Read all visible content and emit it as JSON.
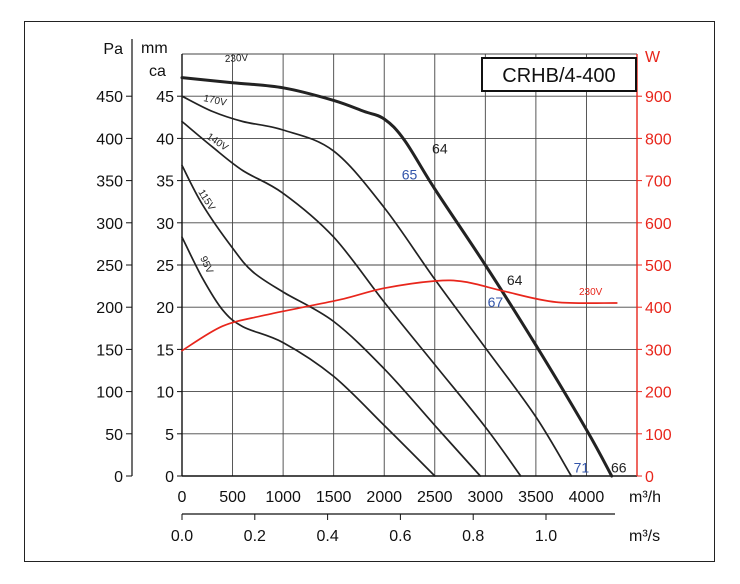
{
  "chart_data": {
    "type": "line",
    "title": "CRHB/4-400",
    "axes": {
      "x": {
        "unit": "m³/h",
        "min": 0,
        "max": 4500,
        "ticks": [
          0,
          500,
          1000,
          1500,
          2000,
          2500,
          3000,
          3500,
          4000
        ]
      },
      "x2": {
        "unit": "m³/s",
        "tick_labels": [
          "0.0",
          "0.2",
          "0.4",
          "0.6",
          "0.8",
          "1.0"
        ],
        "tick_values": [
          0.0,
          0.2,
          0.4,
          0.6,
          0.8,
          1.0
        ]
      },
      "y_pa": {
        "unit": "Pa",
        "min": 0,
        "max": 500,
        "ticks": [
          0,
          50,
          100,
          150,
          200,
          250,
          300,
          350,
          400,
          450
        ]
      },
      "y_mmca": {
        "unit_line1": "mm",
        "unit_line2": "ca",
        "ticks": [
          0,
          5,
          10,
          15,
          20,
          25,
          30,
          35,
          40,
          45
        ]
      },
      "y_w": {
        "unit": "W",
        "min": 0,
        "max": 1000,
        "ticks": [
          0,
          100,
          200,
          300,
          400,
          500,
          600,
          700,
          800,
          900
        ]
      }
    },
    "grid": true,
    "series": [
      {
        "name": "230V",
        "axis": "pa",
        "bold": true,
        "points": [
          [
            0,
            472
          ],
          [
            500,
            466
          ],
          [
            1000,
            460
          ],
          [
            1500,
            445
          ],
          [
            1800,
            432
          ],
          [
            2000,
            423
          ],
          [
            2200,
            398
          ],
          [
            2500,
            340
          ],
          [
            3000,
            250
          ],
          [
            3500,
            155
          ],
          [
            4000,
            55
          ],
          [
            4250,
            0
          ]
        ]
      },
      {
        "name": "170V",
        "axis": "pa",
        "points": [
          [
            0,
            450
          ],
          [
            300,
            432
          ],
          [
            600,
            420
          ],
          [
            1000,
            410
          ],
          [
            1500,
            385
          ],
          [
            2000,
            318
          ],
          [
            2500,
            233
          ],
          [
            3000,
            152
          ],
          [
            3500,
            70
          ],
          [
            3850,
            0
          ]
        ]
      },
      {
        "name": "140V",
        "axis": "pa",
        "points": [
          [
            0,
            420
          ],
          [
            300,
            390
          ],
          [
            600,
            362
          ],
          [
            1000,
            335
          ],
          [
            1500,
            283
          ],
          [
            2000,
            206
          ],
          [
            2500,
            132
          ],
          [
            3000,
            58
          ],
          [
            3350,
            0
          ]
        ]
      },
      {
        "name": "115V",
        "axis": "pa",
        "points": [
          [
            0,
            368
          ],
          [
            200,
            322
          ],
          [
            500,
            270
          ],
          [
            700,
            242
          ],
          [
            1000,
            218
          ],
          [
            1500,
            183
          ],
          [
            2000,
            127
          ],
          [
            2500,
            60
          ],
          [
            2950,
            0
          ]
        ]
      },
      {
        "name": "95V",
        "axis": "pa",
        "points": [
          [
            0,
            283
          ],
          [
            200,
            235
          ],
          [
            400,
            197
          ],
          [
            600,
            177
          ],
          [
            1000,
            158
          ],
          [
            1500,
            118
          ],
          [
            2000,
            60
          ],
          [
            2500,
            0
          ]
        ]
      },
      {
        "name": "230V",
        "axis": "w",
        "color": "#e8261c",
        "points": [
          [
            0,
            297
          ],
          [
            400,
            355
          ],
          [
            800,
            380
          ],
          [
            1200,
            400
          ],
          [
            1600,
            420
          ],
          [
            2000,
            445
          ],
          [
            2500,
            462
          ],
          [
            2800,
            460
          ],
          [
            3200,
            437
          ],
          [
            3700,
            412
          ],
          [
            4300,
            410
          ]
        ]
      }
    ],
    "annotations": [
      {
        "text": "64",
        "x": 2550,
        "y": 388,
        "color": "#222222"
      },
      {
        "text": "65",
        "x": 2250,
        "y": 357,
        "color": "#3355aa"
      },
      {
        "text": "64",
        "x": 3290,
        "y": 232,
        "color": "#222222"
      },
      {
        "text": "67",
        "x": 3100,
        "y": 206,
        "color": "#3355aa"
      },
      {
        "text": "71",
        "x": 3950,
        "y": 10,
        "color": "#3355aa"
      },
      {
        "text": "66",
        "x": 4320,
        "y": 10,
        "color": "#222222"
      }
    ],
    "colors": {
      "curve": "#222222",
      "power": "#e8261c",
      "noise_blue": "#3355aa",
      "grid": "#444444"
    }
  }
}
